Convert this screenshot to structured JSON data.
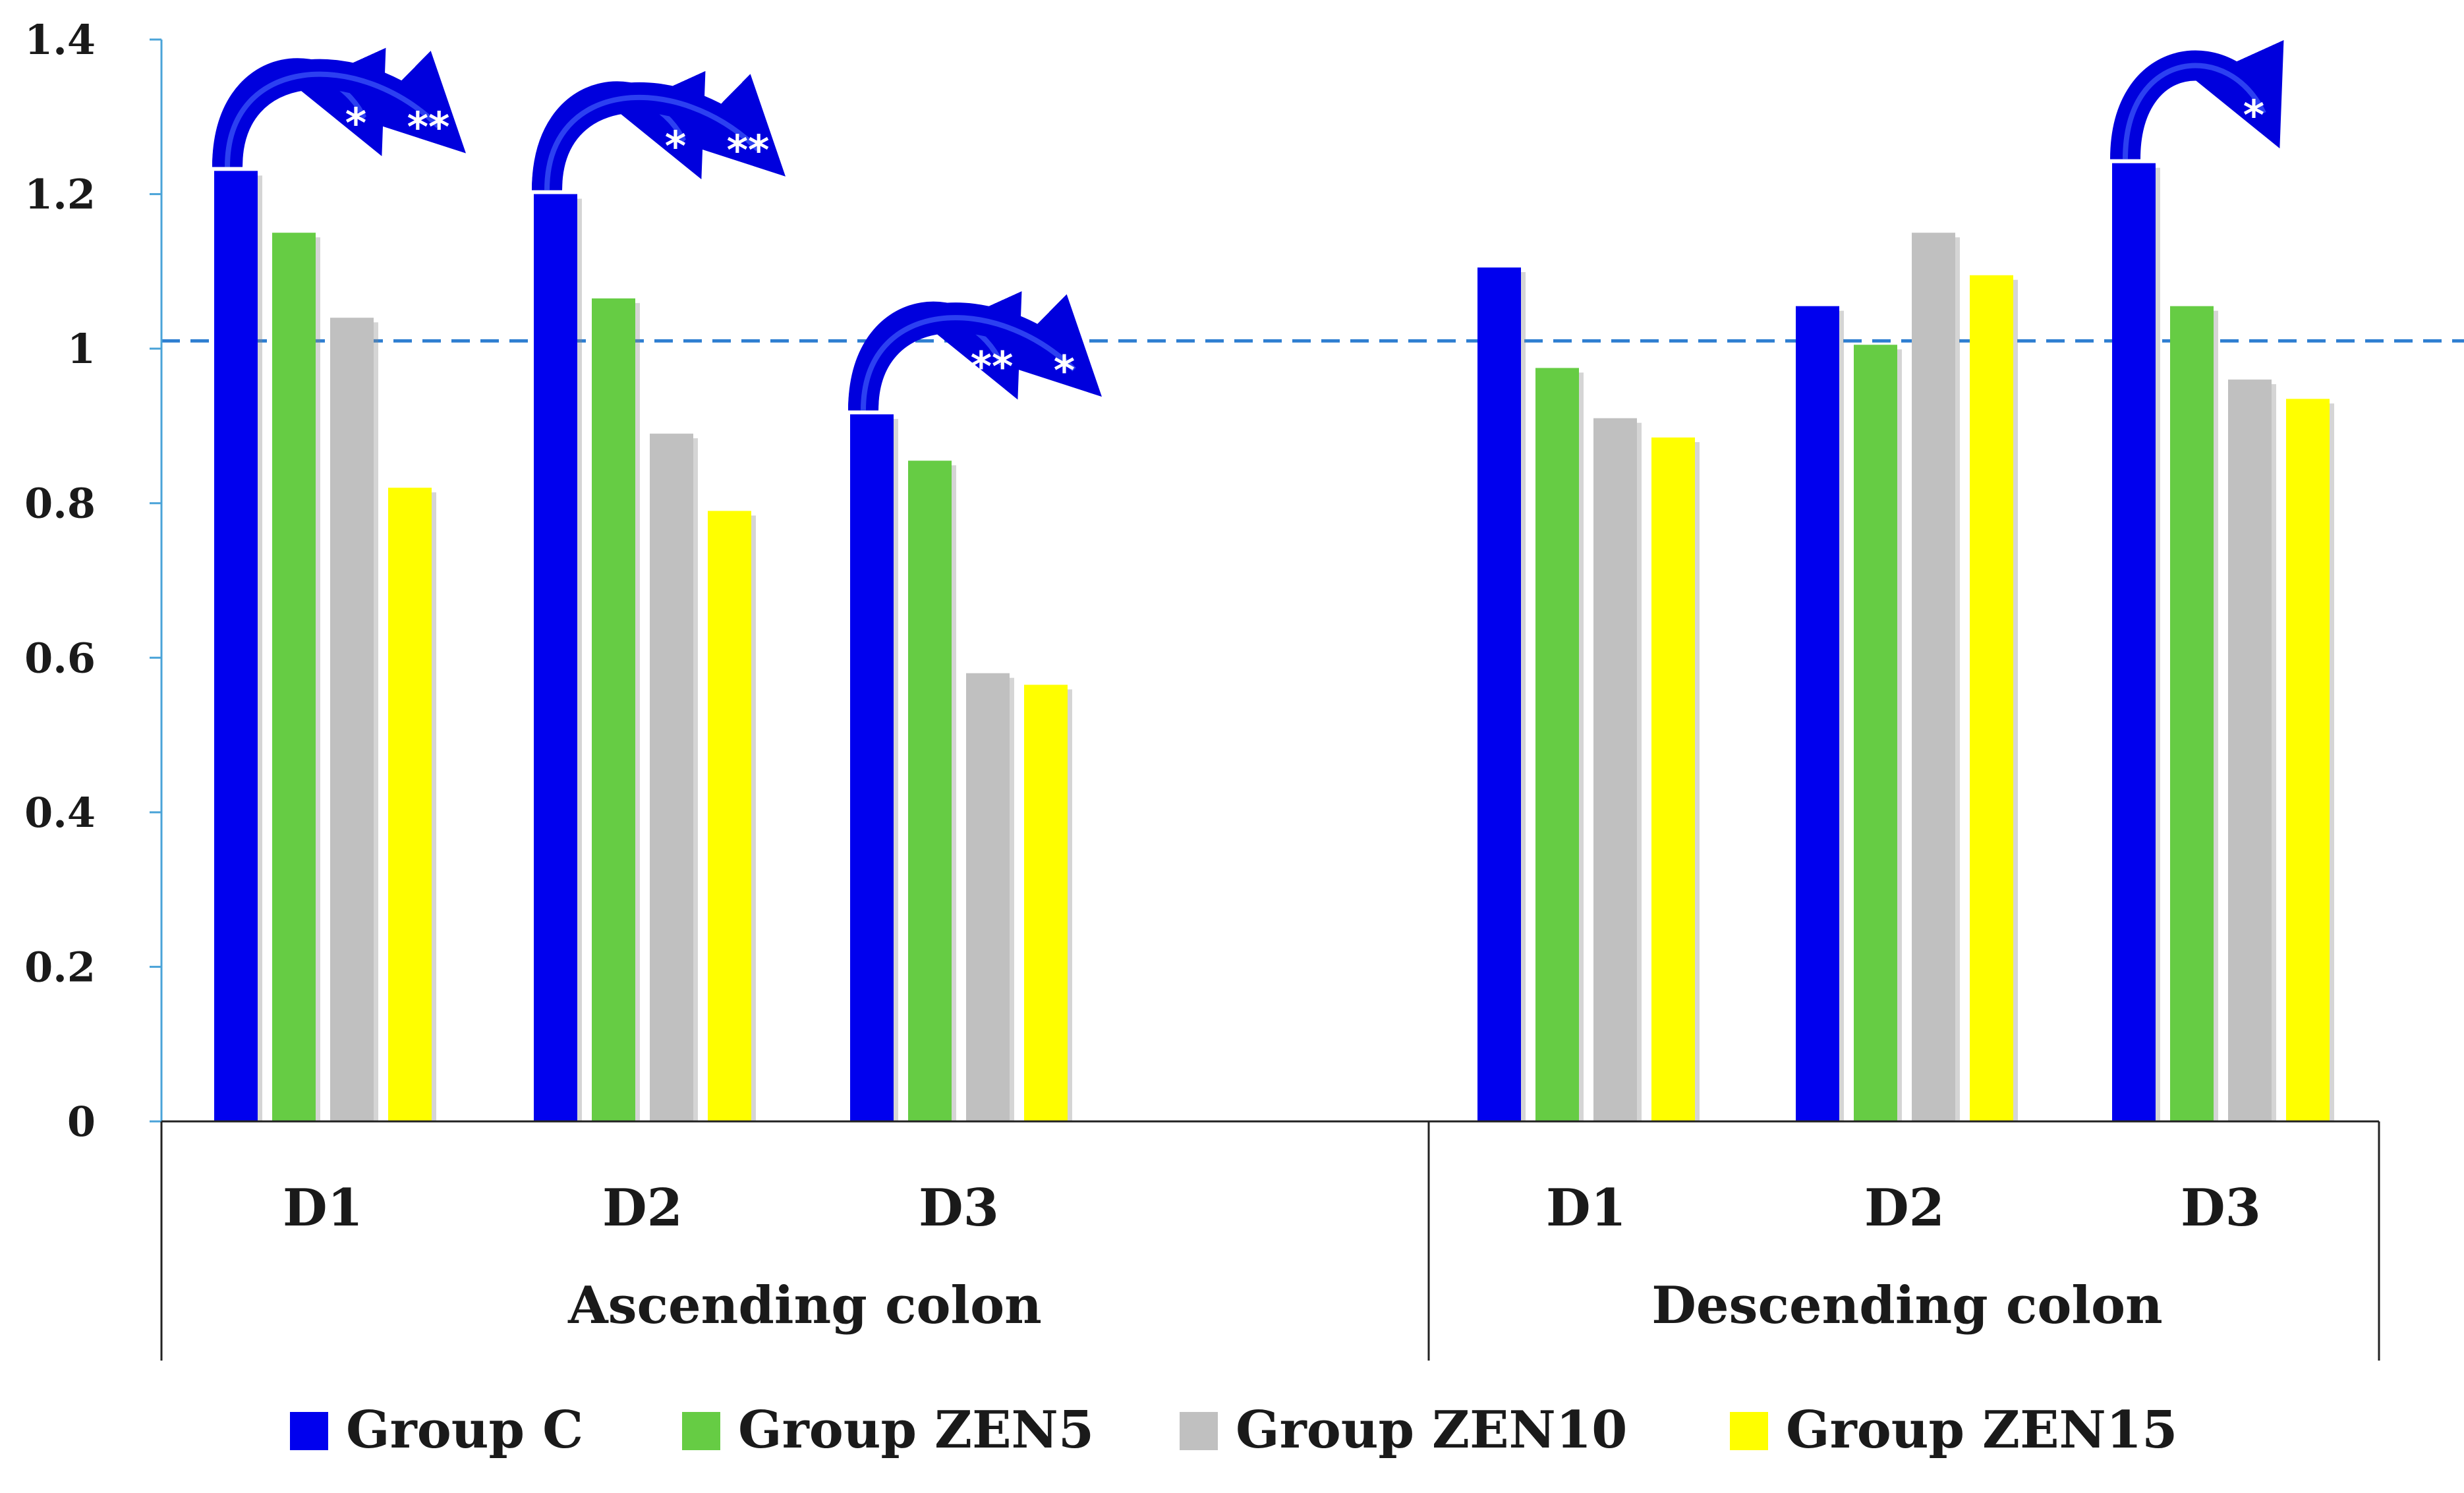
{
  "chart_data": {
    "type": "bar",
    "title": "",
    "xlabel": "",
    "ylabel": "",
    "ylim": [
      0,
      1.4
    ],
    "yticks": [
      "0",
      "0.2",
      "0.4",
      "0.6",
      "0.8",
      "1",
      "1.2",
      "1.4"
    ],
    "reference_line": 1.01,
    "groups": [
      {
        "label": "Ascending colon",
        "categories": [
          "D1",
          "D2",
          "D3"
        ]
      },
      {
        "label": "Descending colon",
        "categories": [
          "D1",
          "D2",
          "D3"
        ]
      }
    ],
    "series": [
      {
        "name": "Group C",
        "color": "#0000ee",
        "values": [
          1.23,
          1.2,
          0.915,
          1.105,
          1.055,
          1.24
        ]
      },
      {
        "name": "Group ZEN5",
        "color": "#66cc44",
        "values": [
          1.15,
          1.065,
          0.855,
          0.975,
          1.005,
          1.055
        ]
      },
      {
        "name": "Group ZEN10",
        "color": "#c0c0c0",
        "values": [
          1.04,
          0.89,
          0.58,
          0.91,
          1.15,
          0.96
        ]
      },
      {
        "name": "Group ZEN15",
        "color": "#ffff00",
        "values": [
          0.82,
          0.79,
          0.565,
          0.885,
          1.095,
          0.935
        ]
      }
    ],
    "significance": [
      {
        "group": "Ascending colon",
        "category": "D1",
        "marks": [
          "*",
          "**"
        ]
      },
      {
        "group": "Ascending colon",
        "category": "D2",
        "marks": [
          "*",
          "**"
        ]
      },
      {
        "group": "Ascending colon",
        "category": "D3",
        "marks": [
          "**",
          "*"
        ]
      },
      {
        "group": "Descending colon",
        "category": "D3",
        "marks": [
          "*"
        ]
      }
    ]
  }
}
